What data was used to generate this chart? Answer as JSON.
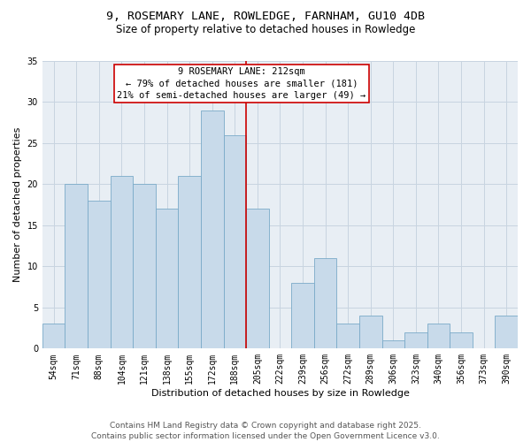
{
  "title1": "9, ROSEMARY LANE, ROWLEDGE, FARNHAM, GU10 4DB",
  "title2": "Size of property relative to detached houses in Rowledge",
  "xlabel": "Distribution of detached houses by size in Rowledge",
  "ylabel": "Number of detached properties",
  "categories": [
    "54sqm",
    "71sqm",
    "88sqm",
    "104sqm",
    "121sqm",
    "138sqm",
    "155sqm",
    "172sqm",
    "188sqm",
    "205sqm",
    "222sqm",
    "239sqm",
    "256sqm",
    "272sqm",
    "289sqm",
    "306sqm",
    "323sqm",
    "340sqm",
    "356sqm",
    "373sqm",
    "390sqm"
  ],
  "values": [
    3,
    20,
    18,
    21,
    20,
    17,
    21,
    29,
    26,
    17,
    0,
    8,
    11,
    3,
    4,
    1,
    2,
    3,
    2,
    0,
    4
  ],
  "bar_color": "#c8daea",
  "bar_edge_color": "#7aaac8",
  "annotation_line_color": "#cc0000",
  "annotation_text": "9 ROSEMARY LANE: 212sqm\n← 79% of detached houses are smaller (181)\n21% of semi-detached houses are larger (49) →",
  "annotation_box_edge_color": "#cc0000",
  "ylim": [
    0,
    35
  ],
  "yticks": [
    0,
    5,
    10,
    15,
    20,
    25,
    30,
    35
  ],
  "grid_color": "#c8d4e0",
  "background_color": "#e8eef4",
  "footer": "Contains HM Land Registry data © Crown copyright and database right 2025.\nContains public sector information licensed under the Open Government Licence v3.0.",
  "title_fontsize": 9.5,
  "subtitle_fontsize": 8.5,
  "axis_label_fontsize": 8,
  "tick_fontsize": 7,
  "annotation_fontsize": 7.5,
  "footer_fontsize": 6.5
}
